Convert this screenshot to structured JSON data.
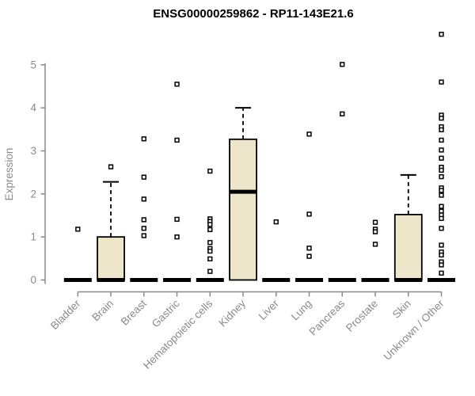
{
  "colors": {
    "box_fill": "#EDE6CB",
    "box_border": "#000000",
    "median": "#000000",
    "whisker": "#000000",
    "outlier_fill": "#FFFFFF",
    "outlier_border": "#000000",
    "axis": "#8A8A8A",
    "tick_label": "#8A8A8A",
    "title": "#000000",
    "background": "#FFFFFF"
  },
  "chart_data": {
    "type": "boxplot",
    "title": "ENSG00000259862 - RP11-143E21.6",
    "xlabel": "",
    "ylabel": "Expression",
    "ylim": [
      0,
      5
    ],
    "yticks": [
      0,
      1,
      2,
      3,
      4,
      5
    ],
    "grid": false,
    "legend_position": "none",
    "categories": [
      "Bladder",
      "Brain",
      "Breast",
      "Gastric",
      "Hematopoietic cells",
      "Kidney",
      "Liver",
      "Lung",
      "Pancreas",
      "Prostate",
      "Skin",
      "Unknown / Other"
    ],
    "series": [
      {
        "category": "Bladder",
        "q1": 0,
        "median": 0,
        "q3": 0,
        "whisker_low": 0,
        "whisker_high": 0,
        "outliers": [
          1.18
        ]
      },
      {
        "category": "Brain",
        "q1": 0,
        "median": 0,
        "q3": 1.0,
        "whisker_low": 0,
        "whisker_high": 2.28,
        "outliers": [
          2.63
        ]
      },
      {
        "category": "Breast",
        "q1": 0,
        "median": 0,
        "q3": 0,
        "whisker_low": 0,
        "whisker_high": 0,
        "outliers": [
          3.28,
          2.39,
          1.88,
          1.4,
          1.2,
          1.03
        ]
      },
      {
        "category": "Gastric",
        "q1": 0,
        "median": 0,
        "q3": 0,
        "whisker_low": 0,
        "whisker_high": 0,
        "outliers": [
          4.55,
          3.25,
          1.41,
          1.0
        ]
      },
      {
        "category": "Hematopoietic cells",
        "q1": 0,
        "median": 0,
        "q3": 0,
        "whisker_low": 0,
        "whisker_high": 0,
        "outliers": [
          2.53,
          1.42,
          1.36,
          1.29,
          1.17,
          0.87,
          0.73,
          0.67,
          0.49,
          0.2
        ]
      },
      {
        "category": "Kidney",
        "q1": 0,
        "median": 2.05,
        "q3": 3.27,
        "whisker_low": 0,
        "whisker_high": 4.0,
        "outliers": []
      },
      {
        "category": "Liver",
        "q1": 0,
        "median": 0,
        "q3": 0,
        "whisker_low": 0,
        "whisker_high": 0,
        "outliers": [
          1.35
        ]
      },
      {
        "category": "Lung",
        "q1": 0,
        "median": 0,
        "q3": 0,
        "whisker_low": 0,
        "whisker_high": 0,
        "outliers": [
          3.39,
          1.53,
          0.74,
          0.55
        ]
      },
      {
        "category": "Pancreas",
        "q1": 0,
        "median": 0,
        "q3": 0,
        "whisker_low": 0,
        "whisker_high": 0,
        "outliers": [
          5.01,
          3.86
        ]
      },
      {
        "category": "Prostate",
        "q1": 0,
        "median": 0,
        "q3": 0,
        "whisker_low": 0,
        "whisker_high": 0,
        "outliers": [
          1.34,
          1.18,
          1.12,
          0.83
        ]
      },
      {
        "category": "Skin",
        "q1": 0,
        "median": 0,
        "q3": 1.52,
        "whisker_low": 0,
        "whisker_high": 2.44,
        "outliers": []
      },
      {
        "category": "Unknown / Other",
        "q1": 0,
        "median": 0,
        "q3": 0,
        "whisker_low": 0,
        "whisker_high": 0,
        "outliers": [
          5.71,
          4.6,
          3.83,
          3.76,
          3.56,
          3.49,
          3.25,
          3.02,
          2.83,
          2.62,
          2.55,
          2.4,
          2.14,
          2.08,
          1.97,
          1.71,
          1.6,
          1.51,
          1.43,
          1.2,
          0.81,
          0.65,
          0.58,
          0.42,
          0.35,
          0.16
        ]
      }
    ]
  }
}
